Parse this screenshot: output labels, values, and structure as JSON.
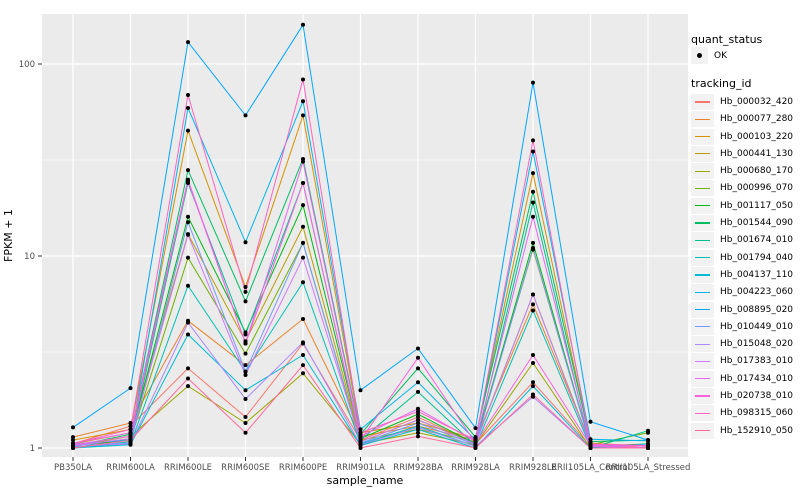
{
  "figure": {
    "background": "#FFFFFF",
    "panel_background": "#EBEBEB",
    "gridline_color": "#FFFFFF",
    "axis_text_color": "#4D4D4D",
    "tick_mark_color": "#333333",
    "point_color": "#000000"
  },
  "legend": {
    "quant_status": {
      "title": "quant_status",
      "items": [
        {
          "label": "OK",
          "symbol": "point"
        }
      ]
    },
    "tracking": {
      "title": "tracking_id"
    }
  },
  "chart_data": {
    "type": "line",
    "title": "",
    "xlabel": "sample_name",
    "ylabel": "FPKM + 1",
    "y_scale": "log10",
    "ylim": [
      1,
      181
    ],
    "y_major_ticks": [
      1,
      10,
      100
    ],
    "y_major_tick_labels": [
      "1",
      "10",
      "100"
    ],
    "y_minor_ticks": [
      3.1623,
      31.623
    ],
    "grid": true,
    "legend_position": "right",
    "point_marker": {
      "shape": "circle",
      "color": "#000000",
      "legend_label": "OK"
    },
    "categories": [
      "PB350LA",
      "RRIM600LA",
      "RRIM600LE",
      "RRIM600SE",
      "RRIM600PE",
      "RRIM901LA",
      "RRIM928BA",
      "RRIM928LA",
      "RRIM928LE",
      "RRII105LA_Control",
      "RRII105LA_Stressed"
    ],
    "series": [
      {
        "name": "Hb_000032_420",
        "color": "#F8766D",
        "values": [
          1.05,
          1.3,
          2.6,
          1.45,
          3.5,
          1.1,
          1.45,
          1.05,
          2.2,
          1.02,
          1.0
        ]
      },
      {
        "name": "Hb_000077_280",
        "color": "#E9842C",
        "values": [
          1.14,
          1.35,
          4.6,
          2.7,
          4.7,
          1.15,
          1.3,
          1.1,
          5.6,
          1.05,
          1.0
        ]
      },
      {
        "name": "Hb_000103_220",
        "color": "#D69100",
        "values": [
          1.1,
          1.25,
          45,
          6.9,
          54,
          1.2,
          1.35,
          1.12,
          27,
          1.06,
          1.02
        ]
      },
      {
        "name": "Hb_000441_130",
        "color": "#BC9D00",
        "values": [
          1.05,
          1.2,
          13,
          3.6,
          14.2,
          1.1,
          1.25,
          1.08,
          10.8,
          1.03,
          1.0
        ]
      },
      {
        "name": "Hb_000680_170",
        "color": "#9CA700",
        "values": [
          1.02,
          1.15,
          2.1,
          1.35,
          2.45,
          1.05,
          1.2,
          1.04,
          2.77,
          1.0,
          1.0
        ]
      },
      {
        "name": "Hb_000996_070",
        "color": "#6FB000",
        "values": [
          1.03,
          1.1,
          9.8,
          3.1,
          11.7,
          1.08,
          1.4,
          1.06,
          6.3,
          1.04,
          1.2
        ]
      },
      {
        "name": "Hb_001117_050",
        "color": "#00B813",
        "values": [
          1.0,
          1.12,
          16,
          4.0,
          18.4,
          1.12,
          1.5,
          1.05,
          11.7,
          1.02,
          1.05
        ]
      },
      {
        "name": "Hb_001544_090",
        "color": "#00BD61",
        "values": [
          1.02,
          1.18,
          28,
          5.8,
          32,
          1.18,
          2.6,
          1.14,
          21.6,
          1.08,
          1.1
        ]
      },
      {
        "name": "Hb_001674_010",
        "color": "#00C08E",
        "values": [
          1.0,
          1.08,
          24,
          3.9,
          24,
          1.1,
          1.96,
          1.03,
          19,
          1.0,
          1.23
        ]
      },
      {
        "name": "Hb_001794_040",
        "color": "#00C0B4",
        "values": [
          1.01,
          1.05,
          7.0,
          2.5,
          7.3,
          1.05,
          1.3,
          1.02,
          5.2,
          1.01,
          1.0
        ]
      },
      {
        "name": "Hb_004137_110",
        "color": "#00BDD4",
        "values": [
          1.0,
          1.04,
          3.9,
          2.0,
          3.05,
          1.03,
          1.25,
          1.0,
          2.1,
          1.0,
          1.05
        ]
      },
      {
        "name": "Hb_004223_060",
        "color": "#00B5EC",
        "values": [
          1.05,
          1.1,
          59,
          11.8,
          64,
          1.25,
          2.2,
          1.1,
          35,
          1.11,
          1.09
        ]
      },
      {
        "name": "Hb_008895_020",
        "color": "#00A7FF",
        "values": [
          1.28,
          2.05,
          130,
          54,
          160,
          2.0,
          3.3,
          1.27,
          80,
          1.37,
          1.1
        ]
      },
      {
        "name": "Hb_010449_010",
        "color": "#7599FF",
        "values": [
          1.04,
          1.06,
          15,
          2.5,
          11.7,
          1.06,
          1.35,
          1.04,
          11,
          1.02,
          1.0
        ]
      },
      {
        "name": "Hb_015048_020",
        "color": "#AB88FF",
        "values": [
          1.02,
          1.05,
          4.5,
          1.8,
          3.55,
          1.04,
          1.28,
          1.02,
          1.85,
          1.0,
          1.0
        ]
      },
      {
        "name": "Hb_017383_010",
        "color": "#CF78FF",
        "values": [
          1.03,
          1.12,
          12.9,
          2.4,
          9.8,
          1.08,
          1.4,
          1.05,
          6.3,
          1.02,
          1.0
        ]
      },
      {
        "name": "Hb_017434_010",
        "color": "#E866F4",
        "values": [
          1.06,
          1.2,
          25,
          3.5,
          31,
          1.15,
          1.6,
          1.08,
          16,
          1.04,
          1.02
        ]
      },
      {
        "name": "Hb_020738_010",
        "color": "#F863DF",
        "values": [
          1.04,
          1.15,
          24.6,
          3.5,
          24,
          1.1,
          2.95,
          1.06,
          3.05,
          1.03,
          1.0
        ]
      },
      {
        "name": "Hb_098315_060",
        "color": "#FF62C1",
        "values": [
          1.05,
          1.25,
          69,
          6.5,
          83,
          1.2,
          1.55,
          1.1,
          40,
          1.05,
          1.03
        ]
      },
      {
        "name": "Hb_152910_050",
        "color": "#FF6A9A",
        "values": [
          1.0,
          1.1,
          2.3,
          1.2,
          2.7,
          1.0,
          1.15,
          1.0,
          1.9,
          1.0,
          1.0
        ]
      }
    ]
  }
}
